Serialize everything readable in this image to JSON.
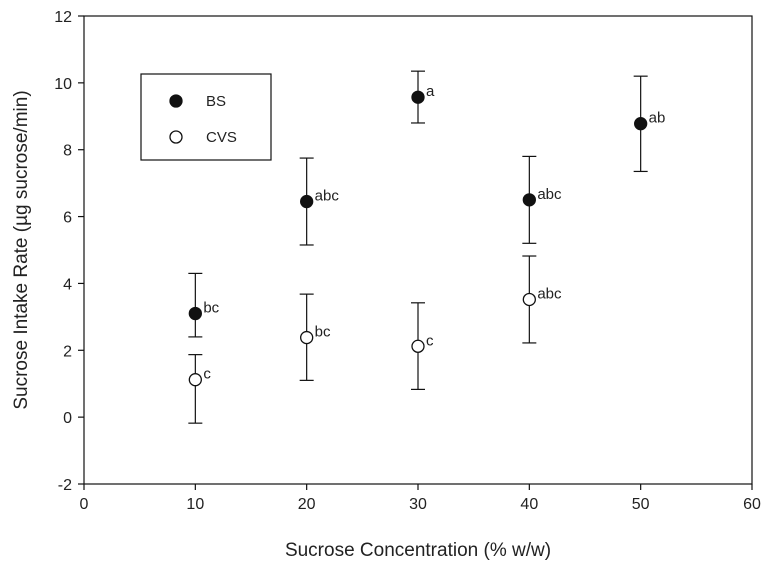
{
  "chart_data": {
    "type": "scatter",
    "xlabel": "Sucrose Concentration (% w/w)",
    "ylabel": "Sucrose Intake Rate (µg sucrose/min)",
    "xlim": [
      0,
      60
    ],
    "ylim": [
      -2,
      12
    ],
    "xticks": [
      "0",
      "10",
      "20",
      "30",
      "40",
      "50",
      "60"
    ],
    "yticks": [
      "-2",
      "0",
      "2",
      "4",
      "6",
      "8",
      "10",
      "12"
    ],
    "grid": false,
    "legend_position": "top-left",
    "series": [
      {
        "name": "BS",
        "marker": "filled-circle",
        "color": "#111111",
        "points": [
          {
            "x": 10,
            "y": 3.1,
            "err_low": 2.4,
            "err_high": 4.3,
            "label": "bc"
          },
          {
            "x": 20,
            "y": 6.45,
            "err_low": 5.15,
            "err_high": 7.75,
            "label": "abc"
          },
          {
            "x": 30,
            "y": 9.57,
            "err_low": 8.8,
            "err_high": 10.35,
            "label": "a"
          },
          {
            "x": 40,
            "y": 6.5,
            "err_low": 5.2,
            "err_high": 7.8,
            "label": "abc"
          },
          {
            "x": 50,
            "y": 8.78,
            "err_low": 7.35,
            "err_high": 10.2,
            "label": "ab"
          }
        ]
      },
      {
        "name": "CVS",
        "marker": "open-circle",
        "color": "#111111",
        "points": [
          {
            "x": 10,
            "y": 1.12,
            "err_low": -0.18,
            "err_high": 1.87,
            "label": "c"
          },
          {
            "x": 20,
            "y": 2.38,
            "err_low": 1.1,
            "err_high": 3.68,
            "label": "bc"
          },
          {
            "x": 30,
            "y": 2.12,
            "err_low": 0.83,
            "err_high": 3.42,
            "label": "c"
          },
          {
            "x": 40,
            "y": 3.52,
            "err_low": 2.22,
            "err_high": 4.82,
            "label": "abc"
          }
        ]
      }
    ]
  }
}
